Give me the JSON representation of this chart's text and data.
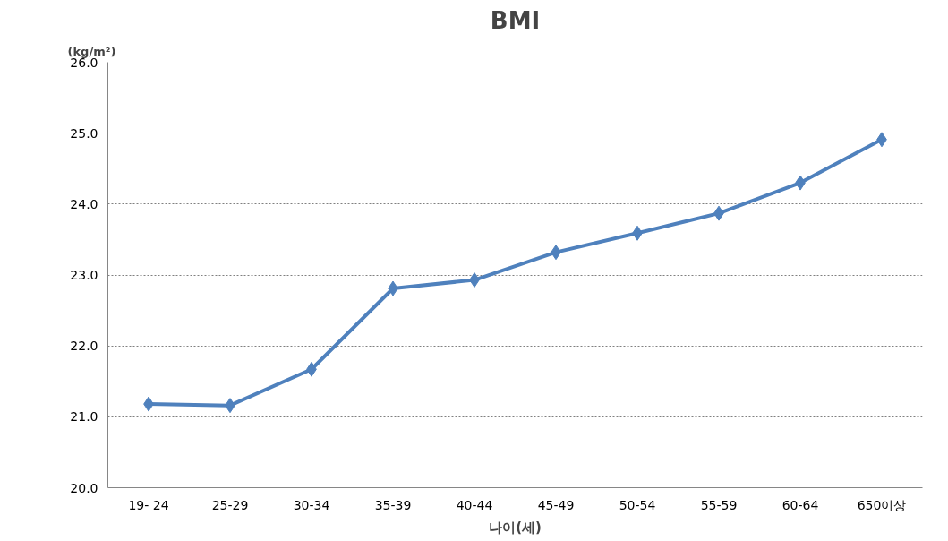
{
  "chart_data": {
    "type": "line",
    "title": "BMI",
    "ylabel": "(kg/m²)",
    "xlabel": "나이(세)",
    "categories": [
      "19- 24",
      "25-29",
      "30-34",
      "35-39",
      "40-44",
      "45-49",
      "50-54",
      "55-59",
      "60-64",
      "650이상"
    ],
    "series": [
      {
        "color": "#4f81bd",
        "values": [
          21.18,
          21.16,
          21.67,
          22.81,
          22.93,
          23.32,
          23.59,
          23.87,
          24.3,
          24.91
        ]
      }
    ],
    "ylim": [
      20,
      26
    ],
    "yticks": [
      {
        "value": 20,
        "label": "20.0"
      },
      {
        "value": 21,
        "label": "21.0"
      },
      {
        "value": 22,
        "label": "22.0"
      },
      {
        "value": 23,
        "label": "23.0"
      },
      {
        "value": 24,
        "label": "24.0"
      },
      {
        "value": 25,
        "label": "25.0"
      },
      {
        "value": 26,
        "label": "26.0"
      }
    ],
    "grid": "y",
    "marker": "diamond",
    "line_style": "solid"
  }
}
